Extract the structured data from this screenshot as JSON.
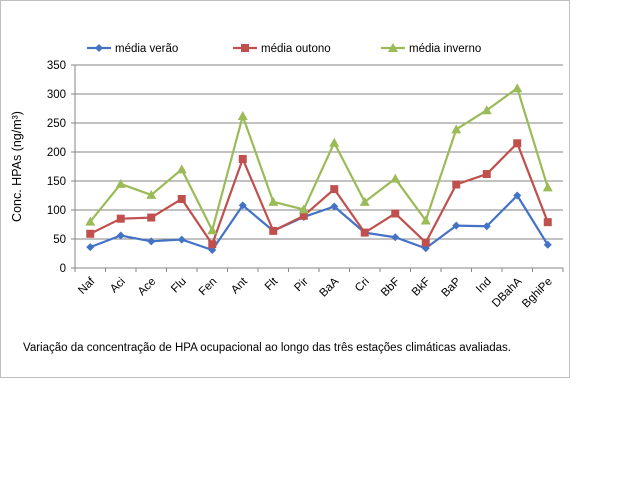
{
  "chart_data": {
    "type": "line",
    "title": "",
    "xlabel": "",
    "ylabel": "Conc. HPAs (ng/m³)",
    "ylim": [
      0,
      350
    ],
    "yticks": [
      0,
      50,
      100,
      150,
      200,
      250,
      300,
      350
    ],
    "grid": "horizontal",
    "legend_position": "top",
    "categories": [
      "Naf",
      "Aci",
      "Ace",
      "Flu",
      "Fen",
      "Ant",
      "Flt",
      "Pir",
      "BaA",
      "Cri",
      "BbF",
      "BkF",
      "BaP",
      "Ind",
      "DBahA",
      "BghiPe"
    ],
    "series": [
      {
        "name": "média verão",
        "color": "#4472c4",
        "marker": "diamond",
        "values": [
          36,
          56,
          46,
          49,
          31,
          108,
          64,
          88,
          106,
          61,
          53,
          34,
          73,
          72,
          125,
          40
        ]
      },
      {
        "name": "média outono",
        "color": "#c0504d",
        "marker": "square",
        "values": [
          59,
          85,
          87,
          119,
          41,
          188,
          64,
          90,
          136,
          61,
          94,
          44,
          144,
          162,
          215,
          79
        ]
      },
      {
        "name": "média inverno",
        "color": "#9bbb59",
        "marker": "triangle",
        "values": [
          80,
          145,
          126,
          170,
          65,
          262,
          114,
          101,
          216,
          114,
          154,
          82,
          239,
          272,
          310,
          139
        ]
      }
    ]
  },
  "caption": "Variação  da concentração de HPA ocupacional ao longo das três estações climáticas avaliadas."
}
